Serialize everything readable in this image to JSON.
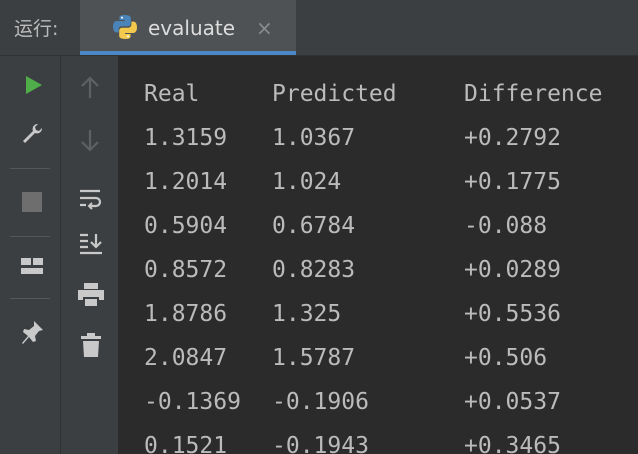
{
  "header": {
    "run_label": "运行:",
    "tab": {
      "label": "evaluate",
      "close_glyph": "×",
      "icon": "python-icon"
    }
  },
  "toolbar_left": [
    "run-icon",
    "wrench-icon",
    "stop-icon",
    "layout-icon",
    "pin-icon"
  ],
  "toolbar_right": [
    "up-arrow-icon",
    "down-arrow-icon",
    "soft-wrap-icon",
    "scroll-to-end-icon",
    "print-icon",
    "trash-icon"
  ],
  "console": {
    "headers": [
      "Real",
      "Predicted",
      "Difference"
    ],
    "rows": [
      [
        "1.3159",
        "1.0367",
        "+0.2792"
      ],
      [
        "1.2014",
        "1.024",
        "+0.1775"
      ],
      [
        "0.5904",
        "0.6784",
        "-0.088"
      ],
      [
        "0.8572",
        "0.8283",
        "+0.0289"
      ],
      [
        "1.8786",
        "1.325",
        "+0.5536"
      ],
      [
        "2.0847",
        "1.5787",
        "+0.506"
      ],
      [
        "-0.1369",
        "-0.1906",
        "+0.0537"
      ],
      [
        "0.1521",
        "-0.1943",
        "+0.3465"
      ]
    ]
  },
  "colors": {
    "run_green": "#4fae4a",
    "tab_accent": "#4a88c7",
    "text": "#bbbbbb"
  }
}
